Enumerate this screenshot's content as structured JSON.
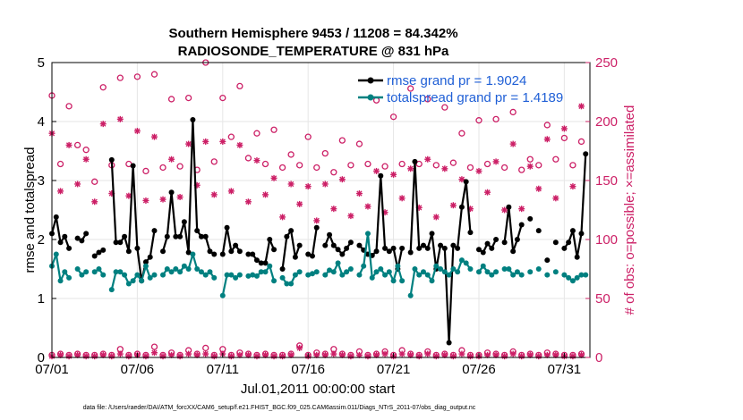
{
  "chart_data": {
    "type": "line",
    "title": "Southern Hemisphere 9453 / 11208 = 84.342%",
    "subtitle": "RADIOSONDE_TEMPERATURE @ 831 hPa",
    "xlabel": "Jul.01,2011 00:00:00 start",
    "ylabel": "rmse and totalspread",
    "y2label": "# of obs: o=possible; ×=assimilated",
    "xlim": [
      0,
      31.5
    ],
    "ylim": [
      0,
      5
    ],
    "y2lim": [
      0,
      250
    ],
    "x_ticks": [
      {
        "value": 0,
        "label": "07/01"
      },
      {
        "value": 5,
        "label": "07/06"
      },
      {
        "value": 10,
        "label": "07/11"
      },
      {
        "value": 15,
        "label": "07/16"
      },
      {
        "value": 20,
        "label": "07/21"
      },
      {
        "value": 25,
        "label": "07/26"
      },
      {
        "value": 30,
        "label": "07/31"
      }
    ],
    "y_ticks": [
      0,
      1,
      2,
      3,
      4,
      5
    ],
    "y2_ticks": [
      0,
      50,
      100,
      150,
      200,
      250
    ],
    "legend": [
      {
        "label": "rmse grand pr = 1.9024",
        "color": "#000000"
      },
      {
        "label": "totalspread grand pr = 1.4189",
        "color": "#008080"
      }
    ],
    "footnote": "data file: /Users/raeder/DAI/ATM_forcXX/CAM6_setup/f.e21.FHIST_BGC.f09_025.CAM6assim.011/Diags_NTrS_2011-07/obs_diag_output.nc",
    "series": [
      {
        "name": "rmse",
        "color": "#000000",
        "axis": "left",
        "x": [
          0,
          0.25,
          0.5,
          0.75,
          1.0,
          1.5,
          1.75,
          2.0,
          2.5,
          2.75,
          3.0,
          3.5,
          3.75,
          4.0,
          4.25,
          4.5,
          4.75,
          5.0,
          5.25,
          5.5,
          5.75,
          6.0,
          6.5,
          6.75,
          7.0,
          7.25,
          7.5,
          7.75,
          8.0,
          8.25,
          8.5,
          8.75,
          9.0,
          9.25,
          9.5,
          10.0,
          10.25,
          10.5,
          10.75,
          11.0,
          11.5,
          11.75,
          12.0,
          12.25,
          12.5,
          12.75,
          13.0,
          13.5,
          13.75,
          14.0,
          14.25,
          14.5,
          15.0,
          15.25,
          15.5,
          16.0,
          16.25,
          16.5,
          16.75,
          17.0,
          17.25,
          17.5,
          18.0,
          18.25,
          18.5,
          18.75,
          19.0,
          19.25,
          19.5,
          19.75,
          20.0,
          20.25,
          20.5,
          21.0,
          21.25,
          21.5,
          21.75,
          22.0,
          22.25,
          22.5,
          22.75,
          23.0,
          23.25,
          23.5,
          23.75,
          24.0,
          24.25,
          24.5,
          25.0,
          25.25,
          25.5,
          25.75,
          26.0,
          26.5,
          26.75,
          27.0,
          27.25,
          27.5,
          28.0,
          28.5,
          29.0,
          29.5,
          30.0,
          30.25,
          30.5,
          30.75,
          31.0,
          31.25
        ],
        "values": [
          2.1,
          2.38,
          1.95,
          2.05,
          1.85,
          2.02,
          1.98,
          2.1,
          1.72,
          1.78,
          1.82,
          3.35,
          1.95,
          1.95,
          2.05,
          1.8,
          3.25,
          1.85,
          1.3,
          1.62,
          1.7,
          2.15,
          1.8,
          2.05,
          2.8,
          2.05,
          2.05,
          2.3,
          1.78,
          4.03,
          2.15,
          2.05,
          2.05,
          1.8,
          1.75,
          1.75,
          2.2,
          1.8,
          1.9,
          1.8,
          1.75,
          1.75,
          1.65,
          1.6,
          1.6,
          2.0,
          1.83,
          1.5,
          2.05,
          2.15,
          1.7,
          1.9,
          1.75,
          1.72,
          2.2,
          1.9,
          2.08,
          1.9,
          1.83,
          1.75,
          1.85,
          1.95,
          1.9,
          1.82,
          1.75,
          1.73,
          1.8,
          3.08,
          1.85,
          1.8,
          1.85,
          1.5,
          1.85,
          1.78,
          3.32,
          1.85,
          1.9,
          1.85,
          2.1,
          1.5,
          1.9,
          1.85,
          0.25,
          1.9,
          1.85,
          2.55,
          2.98,
          2.12,
          1.83,
          1.78,
          1.93,
          1.85,
          2.0,
          1.95,
          2.55,
          1.8,
          2.0,
          2.25,
          2.35,
          2.15,
          1.65,
          1.95,
          1.85,
          1.95,
          2.15,
          1.7,
          2.1,
          3.45
        ]
      },
      {
        "name": "totalspread",
        "color": "#008080",
        "axis": "left",
        "x": [
          0,
          0.25,
          0.5,
          0.75,
          1.0,
          1.5,
          1.75,
          2.0,
          2.5,
          2.75,
          3.0,
          3.5,
          3.75,
          4.0,
          4.25,
          4.5,
          4.75,
          5.0,
          5.25,
          5.5,
          5.75,
          6.0,
          6.5,
          6.75,
          7.0,
          7.25,
          7.5,
          7.75,
          8.0,
          8.25,
          8.5,
          8.75,
          9.0,
          9.25,
          9.5,
          10.0,
          10.25,
          10.5,
          10.75,
          11.0,
          11.5,
          11.75,
          12.0,
          12.25,
          12.5,
          12.75,
          13.0,
          13.5,
          13.75,
          14.0,
          14.25,
          14.5,
          15.0,
          15.25,
          15.5,
          16.0,
          16.25,
          16.5,
          16.75,
          17.0,
          17.25,
          17.5,
          18.0,
          18.25,
          18.5,
          18.75,
          19.0,
          19.25,
          19.5,
          19.75,
          20.0,
          20.25,
          20.5,
          21.0,
          21.25,
          21.5,
          21.75,
          22.0,
          22.25,
          22.5,
          22.75,
          23.0,
          23.25,
          23.5,
          23.75,
          24.0,
          24.25,
          24.5,
          25.0,
          25.25,
          25.5,
          25.75,
          26.0,
          26.5,
          26.75,
          27.0,
          27.25,
          27.5,
          28.0,
          28.5,
          29.0,
          29.5,
          30.0,
          30.25,
          30.5,
          30.75,
          31.0,
          31.25
        ],
        "values": [
          1.55,
          1.75,
          1.3,
          1.45,
          1.35,
          1.5,
          1.4,
          1.45,
          1.45,
          1.5,
          1.4,
          1.15,
          1.45,
          1.45,
          1.4,
          1.25,
          1.3,
          1.4,
          1.3,
          1.55,
          1.35,
          1.4,
          1.4,
          1.5,
          1.45,
          1.5,
          1.45,
          1.55,
          1.5,
          1.75,
          1.5,
          1.45,
          1.4,
          1.45,
          1.35,
          1.05,
          1.4,
          1.4,
          1.35,
          1.4,
          1.38,
          1.4,
          1.38,
          1.45,
          1.45,
          1.55,
          1.3,
          1.35,
          1.25,
          1.25,
          1.4,
          1.45,
          1.4,
          1.42,
          1.45,
          1.4,
          1.48,
          1.45,
          1.6,
          1.4,
          1.45,
          1.5,
          1.4,
          1.55,
          2.1,
          1.35,
          1.45,
          1.5,
          1.4,
          1.45,
          1.3,
          1.55,
          1.3,
          1.05,
          1.5,
          1.4,
          1.45,
          1.4,
          1.3,
          1.55,
          1.5,
          1.45,
          1.4,
          1.5,
          1.45,
          1.65,
          1.6,
          1.5,
          1.45,
          1.55,
          1.45,
          1.4,
          1.45,
          1.5,
          1.5,
          1.4,
          1.45,
          1.4,
          1.45,
          1.5,
          1.4,
          1.45,
          1.4,
          1.35,
          1.3,
          1.35,
          1.4,
          1.4
        ]
      },
      {
        "name": "possible (o)",
        "color": "#cc1f66",
        "axis": "right",
        "marker": "circle",
        "x": [
          0,
          0.5,
          1.0,
          1.5,
          2.0,
          2.5,
          3.0,
          3.5,
          4.0,
          4.5,
          5.0,
          5.5,
          6.0,
          6.5,
          7.0,
          7.5,
          8.0,
          8.5,
          9.0,
          9.5,
          10.0,
          10.5,
          11.0,
          11.5,
          12.0,
          12.5,
          13.0,
          13.5,
          14.0,
          14.5,
          15.0,
          15.5,
          16.0,
          16.5,
          17.0,
          17.5,
          18.0,
          18.5,
          19.0,
          19.5,
          20.0,
          20.5,
          21.0,
          21.5,
          22.0,
          22.5,
          23.0,
          23.5,
          24.0,
          24.5,
          25.0,
          25.5,
          26.0,
          26.5,
          27.0,
          27.5,
          28.0,
          28.5,
          29.0,
          29.5,
          30.0,
          30.5,
          31.0
        ],
        "values": [
          222,
          164,
          213,
          180,
          176,
          149,
          229,
          163,
          237,
          164,
          238,
          158,
          240,
          161,
          219,
          162,
          220,
          159,
          250,
          166,
          220,
          187,
          230,
          169,
          190,
          164,
          193,
          161,
          172,
          163,
          187,
          161,
          173,
          157,
          184,
          163,
          181,
          164,
          218,
          162,
          204,
          164,
          228,
          164,
          219,
          163,
          212,
          165,
          190,
          161,
          201,
          164,
          202,
          161,
          208,
          159,
          168,
          163,
          197,
          168,
          186,
          163,
          183
        ]
      },
      {
        "name": "assimilated (×)",
        "color": "#cc1f66",
        "axis": "right",
        "marker": "star",
        "x": [
          0,
          0.5,
          1.0,
          1.5,
          2.0,
          2.5,
          3.0,
          3.5,
          4.0,
          4.5,
          5.0,
          5.5,
          6.0,
          6.5,
          7.0,
          7.5,
          8.0,
          8.5,
          9.0,
          9.5,
          10.0,
          10.5,
          11.0,
          11.5,
          12.0,
          12.5,
          13.0,
          13.5,
          14.0,
          14.5,
          15.0,
          15.5,
          16.0,
          16.5,
          17.0,
          17.5,
          18.0,
          18.5,
          19.0,
          19.5,
          20.0,
          20.5,
          21.0,
          21.5,
          22.0,
          22.5,
          23.0,
          23.5,
          24.0,
          24.5,
          25.0,
          25.5,
          26.0,
          26.5,
          27.0,
          27.5,
          28.0,
          28.5,
          29.0,
          29.5,
          30.0,
          30.5,
          31.0
        ],
        "values": [
          190,
          141,
          180,
          147,
          168,
          132,
          198,
          139,
          202,
          137,
          192,
          133,
          187,
          134,
          168,
          136,
          181,
          146,
          183,
          138,
          183,
          141,
          180,
          132,
          167,
          138,
          152,
          119,
          147,
          130,
          145,
          116,
          147,
          126,
          151,
          120,
          139,
          128,
          158,
          123,
          155,
          135,
          160,
          127,
          168,
          119,
          160,
          129,
          151,
          126,
          158,
          140,
          166,
          125,
          181,
          126,
          162,
          143,
          185,
          135,
          194,
          145,
          213
        ]
      },
      {
        "name": "possible near zero (o)",
        "color": "#cc1f66",
        "axis": "right",
        "marker": "circle",
        "x": [
          0,
          0.5,
          1.0,
          1.5,
          2.0,
          2.5,
          3.0,
          3.5,
          4.0,
          4.5,
          5.0,
          5.5,
          6.0,
          6.5,
          7.0,
          7.5,
          8.0,
          8.5,
          9.0,
          9.5,
          10.0,
          10.5,
          11.0,
          11.5,
          12.0,
          12.5,
          13.0,
          13.5,
          14.0,
          14.5,
          15.0,
          15.5,
          16.0,
          16.5,
          17.0,
          17.5,
          18.0,
          18.5,
          19.0,
          19.5,
          20.0,
          20.5,
          21.0,
          21.5,
          22.0,
          22.5,
          23.0,
          23.5,
          24.0,
          24.5,
          25.0,
          25.5,
          26.0,
          26.5,
          27.0,
          27.5,
          28.0,
          28.5,
          29.0,
          29.5,
          30.0,
          30.5,
          31.0
        ],
        "values": [
          2,
          3,
          2,
          3,
          2,
          2,
          3,
          2,
          7,
          2,
          3,
          2,
          9,
          2,
          4,
          2,
          6,
          3,
          8,
          2,
          7,
          2,
          4,
          3,
          2,
          3,
          2,
          2,
          3,
          10,
          2,
          4,
          3,
          7,
          3,
          2,
          5,
          2,
          3,
          5,
          2,
          6,
          3,
          2,
          5,
          2,
          3,
          2,
          6,
          2,
          2,
          4,
          3,
          2,
          5,
          2,
          3,
          2,
          4,
          3,
          2,
          2,
          3
        ]
      },
      {
        "name": "assimilated near zero (×)",
        "color": "#cc1f66",
        "axis": "right",
        "marker": "star",
        "x": [
          0,
          0.5,
          1.0,
          1.5,
          2.0,
          2.5,
          3.0,
          3.5,
          4.0,
          4.5,
          5.0,
          5.5,
          6.0,
          6.5,
          7.0,
          7.5,
          8.0,
          8.5,
          9.0,
          9.5,
          10.0,
          10.5,
          11.0,
          11.5,
          12.0,
          12.5,
          13.0,
          13.5,
          14.0,
          14.5,
          15.0,
          15.5,
          16.0,
          16.5,
          17.0,
          17.5,
          18.0,
          18.5,
          19.0,
          19.5,
          20.0,
          20.5,
          21.0,
          21.5,
          22.0,
          22.5,
          23.0,
          23.5,
          24.0,
          24.5,
          25.0,
          25.5,
          26.0,
          26.5,
          27.0,
          27.5,
          28.0,
          28.5,
          29.0,
          29.5,
          30.0,
          30.5,
          31.0
        ],
        "values": [
          1,
          2,
          1,
          2,
          1,
          1,
          2,
          1,
          3,
          1,
          2,
          1,
          4,
          1,
          2,
          1,
          3,
          2,
          3,
          1,
          3,
          1,
          2,
          2,
          1,
          2,
          1,
          1,
          2,
          8,
          1,
          2,
          2,
          3,
          2,
          1,
          2,
          1,
          2,
          3,
          1,
          3,
          2,
          1,
          3,
          1,
          2,
          1,
          3,
          1,
          1,
          2,
          2,
          1,
          3,
          1,
          2,
          1,
          2,
          2,
          1,
          1,
          2
        ]
      }
    ]
  }
}
